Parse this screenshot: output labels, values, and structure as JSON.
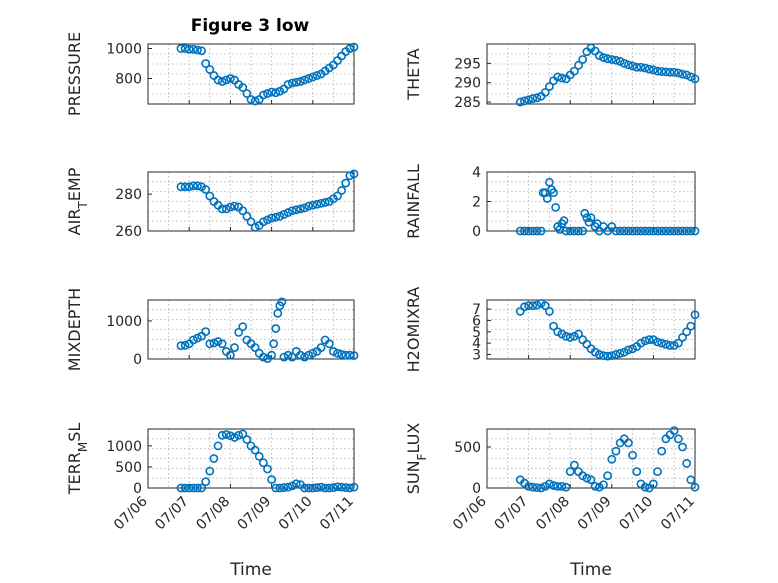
{
  "figure_title": "Figure 3 low",
  "chart_data": [
    {
      "type": "scatter",
      "ylabel": "PRESSURE",
      "xlabel": "",
      "yticks": [
        800,
        1000
      ],
      "ylim": [
        630,
        1030
      ],
      "xlim": [
        0,
        5
      ],
      "x": [
        0.8,
        0.9,
        1.0,
        1.1,
        1.2,
        1.3,
        1.4,
        1.5,
        1.6,
        1.7,
        1.8,
        1.9,
        2.0,
        2.1,
        2.2,
        2.3,
        2.4,
        2.5,
        2.6,
        2.7,
        2.8,
        2.9,
        3.0,
        3.1,
        3.2,
        3.3,
        3.4,
        3.5,
        3.6,
        3.7,
        3.8,
        3.9,
        4.0,
        4.1,
        4.2,
        4.3,
        4.4,
        4.5,
        4.6,
        4.7,
        4.8,
        4.9,
        5.0
      ],
      "y": [
        1000,
        1000,
        995,
        995,
        990,
        985,
        900,
        860,
        820,
        790,
        780,
        790,
        800,
        790,
        760,
        740,
        700,
        660,
        650,
        660,
        690,
        700,
        710,
        705,
        715,
        730,
        760,
        770,
        775,
        780,
        790,
        800,
        810,
        820,
        830,
        850,
        870,
        890,
        920,
        950,
        980,
        1000,
        1010
      ]
    },
    {
      "type": "scatter",
      "ylabel": "THETA",
      "xlabel": "",
      "yticks": [
        285,
        290,
        295
      ],
      "ylim": [
        284.5,
        300
      ],
      "xlim": [
        0,
        5
      ],
      "x": [
        0.8,
        0.9,
        1.0,
        1.1,
        1.2,
        1.3,
        1.4,
        1.5,
        1.6,
        1.7,
        1.8,
        1.9,
        2.0,
        2.1,
        2.2,
        2.3,
        2.4,
        2.5,
        2.6,
        2.7,
        2.8,
        2.9,
        3.0,
        3.1,
        3.2,
        3.3,
        3.4,
        3.5,
        3.6,
        3.7,
        3.8,
        3.9,
        4.0,
        4.1,
        4.2,
        4.3,
        4.4,
        4.5,
        4.6,
        4.7,
        4.8,
        4.9,
        5.0
      ],
      "y": [
        285,
        285.3,
        285.6,
        285.9,
        286.1,
        286.5,
        287.5,
        289,
        290.5,
        291.5,
        291.2,
        291,
        292,
        293,
        294.5,
        296,
        298,
        299,
        298.2,
        297,
        296.5,
        296.2,
        296,
        295.8,
        295.5,
        295,
        294.6,
        294.3,
        294,
        294,
        293.8,
        293.5,
        293.3,
        293,
        292.9,
        292.8,
        292.7,
        292.7,
        292.5,
        292.2,
        292,
        291.5,
        291
      ]
    },
    {
      "type": "scatter",
      "ylabel": "AIR_TEMP",
      "xlabel": "",
      "yticks": [
        260,
        280
      ],
      "ylim": [
        260,
        292
      ],
      "xlim": [
        0,
        5
      ],
      "x": [
        0.8,
        0.9,
        1.0,
        1.1,
        1.2,
        1.3,
        1.4,
        1.5,
        1.6,
        1.7,
        1.8,
        1.9,
        2.0,
        2.1,
        2.2,
        2.3,
        2.4,
        2.5,
        2.6,
        2.7,
        2.8,
        2.9,
        3.0,
        3.1,
        3.2,
        3.3,
        3.4,
        3.5,
        3.6,
        3.7,
        3.8,
        3.9,
        4.0,
        4.1,
        4.2,
        4.3,
        4.4,
        4.5,
        4.6,
        4.7,
        4.8,
        4.9,
        5.0
      ],
      "y": [
        284,
        284,
        284,
        284.5,
        284.5,
        284,
        282.5,
        279,
        276,
        274,
        272,
        272,
        273,
        273.5,
        273,
        271,
        268,
        265,
        262,
        263,
        265,
        266,
        267,
        267.5,
        268,
        269,
        270,
        271,
        271.5,
        272,
        272.5,
        273.5,
        274,
        274.5,
        275,
        275.5,
        276,
        277.5,
        279,
        282,
        286,
        290,
        291
      ]
    },
    {
      "type": "scatter",
      "ylabel": "RAINFALL",
      "xlabel": "",
      "yticks": [
        0,
        2,
        4
      ],
      "ylim": [
        0,
        4
      ],
      "xlim": [
        0,
        5
      ],
      "x": [
        0.8,
        0.9,
        1.0,
        1.1,
        1.2,
        1.3,
        1.35,
        1.4,
        1.45,
        1.5,
        1.55,
        1.6,
        1.65,
        1.7,
        1.75,
        1.8,
        1.85,
        1.9,
        2.0,
        2.1,
        2.2,
        2.3,
        2.35,
        2.4,
        2.45,
        2.5,
        2.6,
        2.65,
        2.7,
        2.8,
        2.9,
        3.0,
        3.1,
        3.2,
        3.3,
        3.4,
        3.5,
        3.6,
        3.7,
        3.8,
        3.9,
        4.0,
        4.1,
        4.2,
        4.3,
        4.4,
        4.5,
        4.6,
        4.7,
        4.8,
        4.9,
        5.0
      ],
      "y": [
        0,
        0,
        0,
        0,
        0,
        0,
        2.6,
        2.6,
        2.2,
        3.3,
        2.8,
        2.6,
        1.6,
        0.3,
        0.1,
        0.5,
        0.7,
        0,
        0,
        0,
        0,
        0,
        1.2,
        0.9,
        0.6,
        0.9,
        0.3,
        0.5,
        0,
        0.3,
        0,
        0.3,
        0,
        0,
        0,
        0,
        0,
        0,
        0,
        0,
        0,
        0,
        0,
        0,
        0,
        0,
        0,
        0,
        0,
        0,
        0,
        0
      ]
    },
    {
      "type": "scatter",
      "ylabel": "MIXDEPTH",
      "xlabel": "",
      "yticks": [
        0,
        1000
      ],
      "ylim": [
        0,
        1550
      ],
      "xlim": [
        0,
        5
      ],
      "x": [
        0.8,
        0.9,
        1.0,
        1.1,
        1.2,
        1.3,
        1.4,
        1.5,
        1.6,
        1.7,
        1.8,
        1.9,
        2.0,
        2.1,
        2.2,
        2.3,
        2.4,
        2.5,
        2.6,
        2.7,
        2.8,
        2.9,
        3.0,
        3.05,
        3.1,
        3.15,
        3.2,
        3.25,
        3.3,
        3.4,
        3.5,
        3.6,
        3.7,
        3.8,
        3.9,
        4.0,
        4.1,
        4.2,
        4.3,
        4.4,
        4.5,
        4.6,
        4.7,
        4.8,
        4.9,
        5.0
      ],
      "y": [
        350,
        360,
        400,
        500,
        550,
        600,
        720,
        400,
        420,
        460,
        400,
        200,
        100,
        300,
        700,
        850,
        500,
        400,
        300,
        150,
        50,
        10,
        100,
        400,
        800,
        1200,
        1400,
        1500,
        50,
        100,
        50,
        200,
        100,
        50,
        100,
        150,
        200,
        300,
        500,
        400,
        200,
        150,
        120,
        100,
        100,
        90
      ]
    },
    {
      "type": "scatter",
      "ylabel": "H2OMIXRA",
      "xlabel": "",
      "yticks": [
        3,
        4,
        5,
        6,
        7
      ],
      "ylim": [
        2.6,
        7.8
      ],
      "xlim": [
        0,
        5
      ],
      "x": [
        0.8,
        0.9,
        1.0,
        1.1,
        1.2,
        1.3,
        1.4,
        1.5,
        1.6,
        1.7,
        1.8,
        1.9,
        2.0,
        2.1,
        2.2,
        2.3,
        2.4,
        2.5,
        2.6,
        2.7,
        2.8,
        2.9,
        3.0,
        3.1,
        3.2,
        3.3,
        3.4,
        3.5,
        3.6,
        3.7,
        3.8,
        3.9,
        4.0,
        4.1,
        4.2,
        4.3,
        4.4,
        4.5,
        4.6,
        4.7,
        4.8,
        4.9,
        5.0
      ],
      "y": [
        6.8,
        7.2,
        7.3,
        7.3,
        7.35,
        7.5,
        7.3,
        6.8,
        5.5,
        5.0,
        4.8,
        4.6,
        4.5,
        4.6,
        4.8,
        4.3,
        3.9,
        3.5,
        3.2,
        3.0,
        2.9,
        2.85,
        2.9,
        3.0,
        3.1,
        3.2,
        3.4,
        3.5,
        3.7,
        4.0,
        4.2,
        4.3,
        4.3,
        4.1,
        4.0,
        3.9,
        3.8,
        3.8,
        4.0,
        4.5,
        5.0,
        5.5,
        6.5
      ]
    },
    {
      "type": "scatter",
      "ylabel": "TERR_MSL",
      "xlabel": "Time",
      "xticks": [
        "07/06",
        "07/07",
        "07/08",
        "07/09",
        "07/10",
        "07/11"
      ],
      "yticks": [
        0,
        500,
        1000
      ],
      "ylim": [
        0,
        1400
      ],
      "xlim": [
        0,
        5
      ],
      "x": [
        0.8,
        0.9,
        1.0,
        1.1,
        1.2,
        1.3,
        1.4,
        1.5,
        1.6,
        1.7,
        1.8,
        1.9,
        2.0,
        2.1,
        2.2,
        2.3,
        2.4,
        2.5,
        2.6,
        2.7,
        2.8,
        2.9,
        3.0,
        3.1,
        3.2,
        3.3,
        3.4,
        3.5,
        3.6,
        3.7,
        3.8,
        3.9,
        4.0,
        4.1,
        4.2,
        4.3,
        4.4,
        4.5,
        4.6,
        4.7,
        4.8,
        4.9,
        5.0
      ],
      "y": [
        0,
        0,
        0,
        0,
        0,
        0,
        150,
        400,
        700,
        1000,
        1250,
        1270,
        1240,
        1200,
        1250,
        1280,
        1150,
        1000,
        900,
        750,
        600,
        450,
        200,
        0,
        0,
        10,
        20,
        50,
        100,
        80,
        0,
        0,
        0,
        10,
        20,
        0,
        0,
        10,
        30,
        20,
        10,
        0,
        20
      ]
    },
    {
      "type": "scatter",
      "ylabel": "SUN_FLUX",
      "xlabel": "Time",
      "xticks": [
        "07/06",
        "07/07",
        "07/08",
        "07/09",
        "07/10",
        "07/11"
      ],
      "yticks": [
        0,
        500
      ],
      "ylim": [
        0,
        720
      ],
      "xlim": [
        0,
        5
      ],
      "x": [
        0.8,
        0.9,
        1.0,
        1.1,
        1.2,
        1.3,
        1.4,
        1.5,
        1.6,
        1.7,
        1.8,
        1.9,
        2.0,
        2.1,
        2.2,
        2.3,
        2.4,
        2.5,
        2.6,
        2.7,
        2.8,
        2.9,
        3.0,
        3.1,
        3.2,
        3.3,
        3.4,
        3.5,
        3.6,
        3.7,
        3.8,
        3.9,
        4.0,
        4.1,
        4.2,
        4.3,
        4.4,
        4.5,
        4.6,
        4.7,
        4.8,
        4.9,
        5.0
      ],
      "y": [
        100,
        60,
        20,
        10,
        5,
        0,
        20,
        50,
        30,
        20,
        20,
        10,
        200,
        280,
        200,
        150,
        120,
        100,
        20,
        10,
        40,
        150,
        350,
        450,
        550,
        600,
        550,
        400,
        200,
        50,
        10,
        0,
        50,
        200,
        450,
        600,
        650,
        700,
        600,
        500,
        300,
        100,
        10
      ]
    }
  ]
}
